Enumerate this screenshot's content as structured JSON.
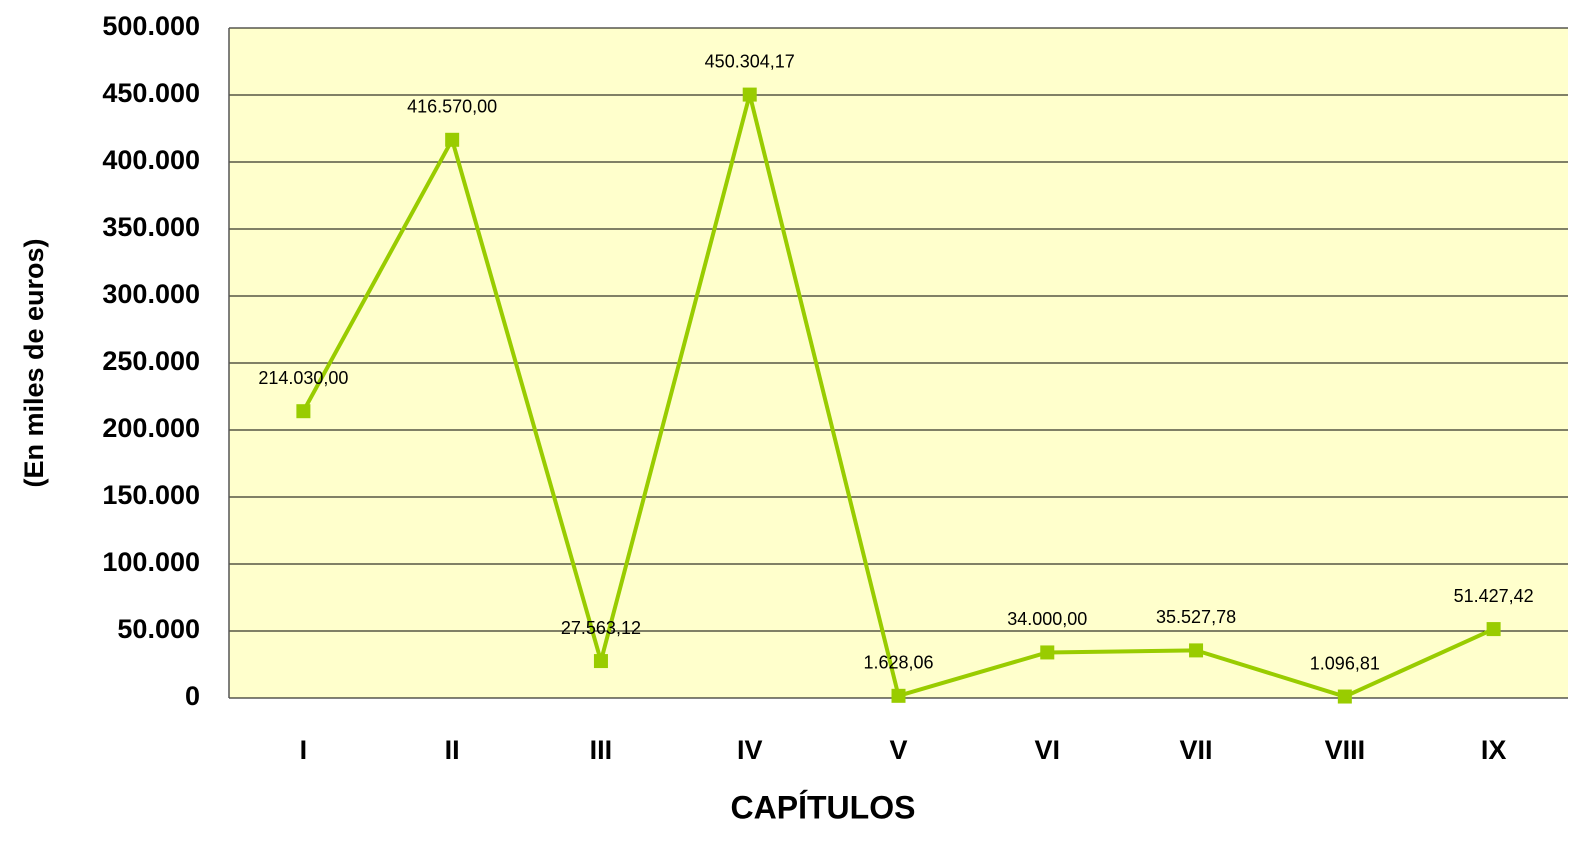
{
  "chart_data": {
    "type": "line",
    "x_label": "CAPÍTULOS",
    "y_label": "(En miles de euros)",
    "categories": [
      "I",
      "II",
      "III",
      "IV",
      "V",
      "VI",
      "VII",
      "VIII",
      "IX"
    ],
    "series": [
      {
        "color": "#99cc00",
        "values": [
          214030,
          416570,
          27563.12,
          450304.17,
          1628.06,
          34000,
          35527.78,
          1096.81,
          51427.42
        ],
        "value_labels": [
          "214.030,00",
          "416.570,00",
          "27.563,12",
          "450.304,17",
          "1.628,06",
          "34.000,00",
          "35.527,78",
          "1.096,81",
          "51.427,42"
        ]
      }
    ],
    "ylim": [
      0,
      500000
    ],
    "yticks": [
      0,
      {
        "value": 50000,
        "label": "50.000"
      },
      {
        "value": 100000,
        "label": "100.000"
      },
      {
        "value": 150000,
        "label": "150.000"
      },
      {
        "value": 200000,
        "label": "200.000"
      },
      {
        "value": 250000,
        "label": "250.000"
      },
      {
        "value": 300000,
        "label": "300.000"
      },
      {
        "value": 350000,
        "label": "350.000"
      },
      {
        "value": 400000,
        "label": "400.000"
      },
      {
        "value": 450000,
        "label": "450.000"
      },
      {
        "value": 500000,
        "label": "500.000"
      }
    ],
    "grid": true,
    "plot_background": "#ffffcc"
  }
}
